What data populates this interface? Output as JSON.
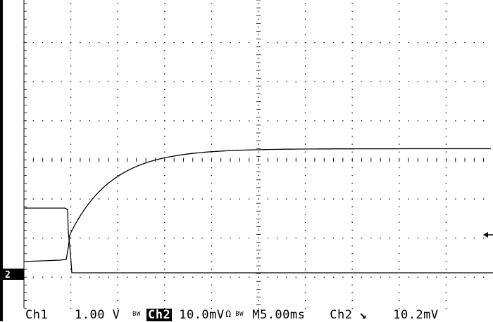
{
  "ground_marker": "2",
  "status": {
    "ch1_label": "Ch1",
    "ch1_scale": "1.00 V",
    "ch1_bw": "BW",
    "ch2_label": "Ch2",
    "ch2_scale": "10.0mV",
    "ch2_coupling": "Ω",
    "ch2_bw": "BW",
    "timebase": "M5.00ms",
    "trigger_source": "Ch2",
    "trigger_slope": "↘",
    "trigger_level": "10.2mV"
  },
  "colors": {
    "background": "#ffffff",
    "trace": "#000000",
    "graticule": "#000000"
  }
}
